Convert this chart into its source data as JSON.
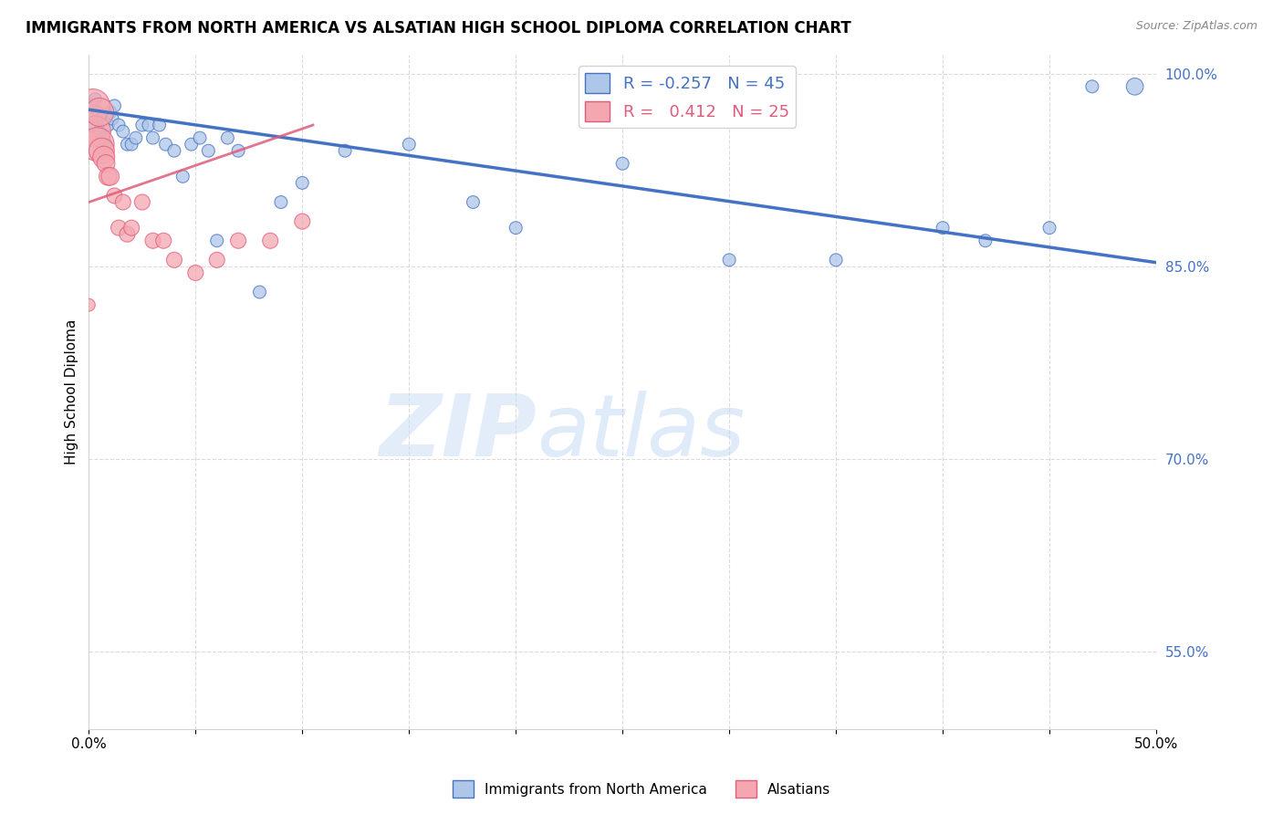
{
  "title": "IMMIGRANTS FROM NORTH AMERICA VS ALSATIAN HIGH SCHOOL DIPLOMA CORRELATION CHART",
  "source": "Source: ZipAtlas.com",
  "ylabel": "High School Diploma",
  "xlim": [
    0.0,
    0.5
  ],
  "ylim": [
    0.49,
    1.015
  ],
  "ytick_positions": [
    0.55,
    0.7,
    0.85,
    1.0
  ],
  "ytick_labels": [
    "55.0%",
    "70.0%",
    "85.0%",
    "100.0%"
  ],
  "xtick_positions": [
    0.0,
    0.05,
    0.1,
    0.15,
    0.2,
    0.25,
    0.3,
    0.35,
    0.4,
    0.45,
    0.5
  ],
  "xtick_labels": [
    "0.0%",
    "",
    "",
    "",
    "",
    "",
    "",
    "",
    "",
    "",
    "50.0%"
  ],
  "blue_R": -0.257,
  "blue_N": 45,
  "pink_R": 0.412,
  "pink_N": 25,
  "blue_color": "#aec6e8",
  "pink_color": "#f4a7b0",
  "blue_line_color": "#4472c4",
  "pink_line_color": "#e05c7a",
  "watermark_zip": "ZIP",
  "watermark_atlas": "atlas",
  "blue_scatter_x": [
    0.001,
    0.002,
    0.003,
    0.004,
    0.005,
    0.006,
    0.007,
    0.008,
    0.009,
    0.01,
    0.011,
    0.012,
    0.014,
    0.016,
    0.018,
    0.02,
    0.022,
    0.025,
    0.028,
    0.03,
    0.033,
    0.036,
    0.04,
    0.044,
    0.048,
    0.052,
    0.056,
    0.06,
    0.065,
    0.07,
    0.08,
    0.09,
    0.1,
    0.12,
    0.15,
    0.18,
    0.2,
    0.25,
    0.3,
    0.35,
    0.4,
    0.42,
    0.45,
    0.47,
    0.49
  ],
  "blue_scatter_y": [
    0.975,
    0.96,
    0.98,
    0.97,
    0.955,
    0.965,
    0.95,
    0.945,
    0.96,
    0.97,
    0.965,
    0.975,
    0.96,
    0.955,
    0.945,
    0.945,
    0.95,
    0.96,
    0.96,
    0.95,
    0.96,
    0.945,
    0.94,
    0.92,
    0.945,
    0.95,
    0.94,
    0.87,
    0.95,
    0.94,
    0.83,
    0.9,
    0.915,
    0.94,
    0.945,
    0.9,
    0.88,
    0.93,
    0.855,
    0.855,
    0.88,
    0.87,
    0.88,
    0.99,
    0.99
  ],
  "blue_scatter_size": [
    120,
    100,
    100,
    100,
    100,
    100,
    100,
    100,
    100,
    100,
    100,
    100,
    100,
    100,
    100,
    100,
    100,
    100,
    100,
    100,
    100,
    100,
    100,
    100,
    100,
    100,
    100,
    100,
    100,
    100,
    100,
    100,
    100,
    100,
    100,
    100,
    100,
    100,
    100,
    100,
    100,
    100,
    100,
    100,
    180
  ],
  "pink_scatter_x": [
    0.0,
    0.001,
    0.002,
    0.003,
    0.004,
    0.005,
    0.006,
    0.007,
    0.008,
    0.009,
    0.01,
    0.012,
    0.014,
    0.016,
    0.018,
    0.02,
    0.025,
    0.03,
    0.035,
    0.04,
    0.05,
    0.06,
    0.07,
    0.085,
    0.1
  ],
  "pink_scatter_y": [
    0.82,
    0.95,
    0.975,
    0.955,
    0.945,
    0.97,
    0.94,
    0.935,
    0.93,
    0.92,
    0.92,
    0.905,
    0.88,
    0.9,
    0.875,
    0.88,
    0.9,
    0.87,
    0.87,
    0.855,
    0.845,
    0.855,
    0.87,
    0.87,
    0.885
  ],
  "pink_scatter_size": [
    100,
    100,
    700,
    600,
    700,
    500,
    400,
    300,
    200,
    200,
    200,
    150,
    150,
    150,
    150,
    150,
    150,
    150,
    150,
    150,
    150,
    150,
    150,
    150,
    150
  ],
  "blue_line_x": [
    0.0,
    0.5
  ],
  "blue_line_y": [
    0.972,
    0.853
  ],
  "pink_line_x": [
    0.0,
    0.105
  ],
  "pink_line_y": [
    0.9,
    0.96
  ]
}
